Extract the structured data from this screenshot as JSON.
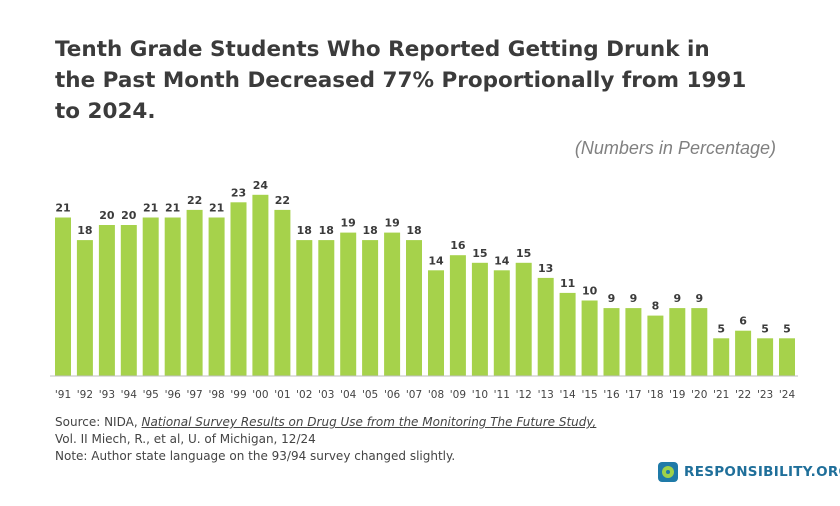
{
  "header": {
    "title": "Tenth Grade Students Who Reported Getting Drunk in the Past Month Decreased 77% Proportionally from 1991 to 2024.",
    "units_note": "(Numbers in Percentage)"
  },
  "chart_data": {
    "type": "bar",
    "title": "Tenth Grade Students Who Reported Getting Drunk in the Past Month Decreased 77% Proportionally from 1991 to 2024.",
    "categories": [
      "'91",
      "'92",
      "'93",
      "'94",
      "'95",
      "'96",
      "'97",
      "'98",
      "'99",
      "'00",
      "'01",
      "'02",
      "'03",
      "'04",
      "'05",
      "'06",
      "'07",
      "'08",
      "'09",
      "'10",
      "'11",
      "'12",
      "'13",
      "'14",
      "'15",
      "'16",
      "'17",
      "'18",
      "'19",
      "'20",
      "'21",
      "'22",
      "'23",
      "'24"
    ],
    "values": [
      21,
      18,
      20,
      20,
      21,
      21,
      22,
      21,
      23,
      24,
      22,
      18,
      18,
      19,
      18,
      19,
      18,
      14,
      16,
      15,
      14,
      15,
      13,
      11,
      10,
      9,
      9,
      8,
      9,
      9,
      5,
      6,
      5,
      5
    ],
    "xlabel": "",
    "ylabel": "",
    "ylim": [
      0,
      26
    ],
    "grid": false,
    "bar_color": "#a6d24b",
    "label_color": "#3b3b3b",
    "axis_color": "#bfbfbf"
  },
  "footer": {
    "source_prefix": "Source: NIDA, ",
    "source_ref": "National Survey Results on Drug Use from the Monitoring The Future Study,",
    "source_line2": "Vol. II Miech, R., et al, U. of Michigan, 12/24",
    "note": "Note: Author state language on the 93/94 survey changed slightly."
  },
  "brand": {
    "name": "RESPONSIBILITY.ORG",
    "icon": "responsibility-logo-icon",
    "color": "#1f6f9a"
  }
}
